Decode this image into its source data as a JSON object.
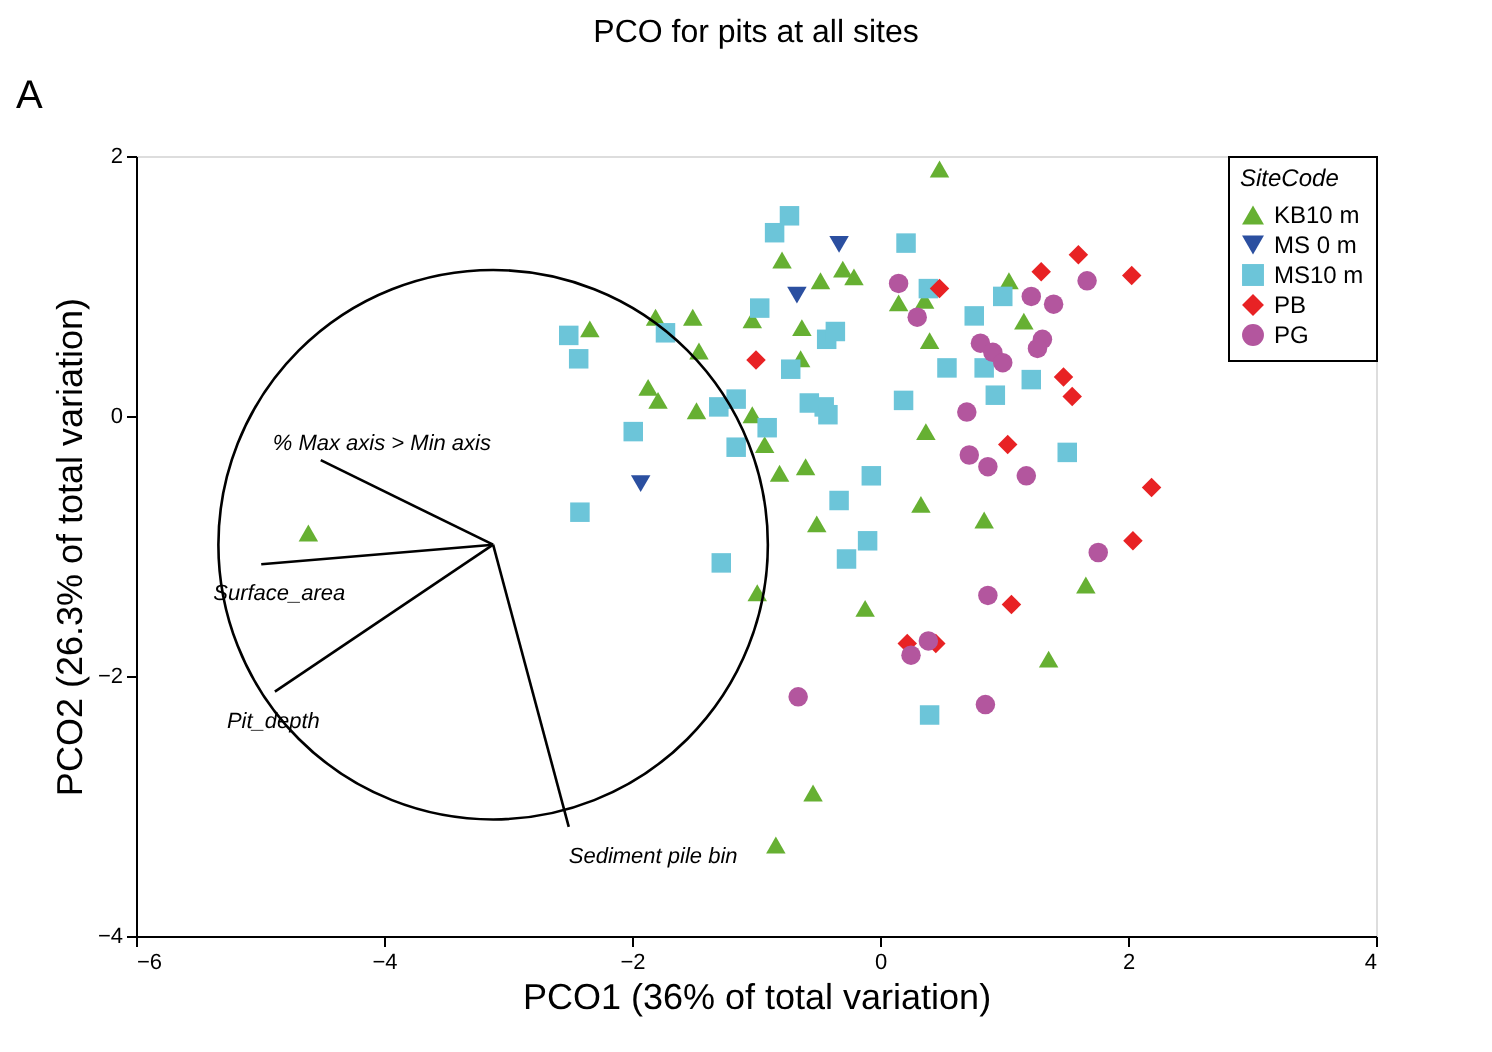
{
  "chart_data": {
    "type": "scatter",
    "title": "PCO for pits at all sites",
    "xlabel": "PCO1 (36% of total variation)",
    "ylabel": "PCO2 (26.3% of total variation)",
    "legend_title": "SiteCode",
    "xlim": [
      -6,
      4
    ],
    "ylim": [
      -4,
      2
    ],
    "xticks": [
      -6,
      -4,
      -2,
      0,
      2,
      4
    ],
    "yticks": [
      -4,
      -2,
      0,
      2
    ],
    "grid": false,
    "legend": "top right",
    "annotations": [
      "A"
    ],
    "series": [
      {
        "name": "KB10 m",
        "color": "#66b032",
        "marker": "triangle",
        "x": [
          0.48,
          -4.61,
          -0.79,
          -2.34,
          -1.81,
          -1.51,
          -1.46,
          -1.87,
          -1.79,
          -1.48,
          -1.03,
          -1.03,
          -0.48,
          -0.3,
          -0.21,
          -0.63,
          -0.64,
          -0.93,
          -0.81,
          -0.6,
          -0.51,
          -0.99,
          -0.12,
          -0.54,
          -0.84,
          0.15,
          0.36,
          0.4,
          1.04,
          1.16,
          0.37,
          0.33,
          0.84,
          1.66,
          1.36
        ],
        "values": [
          1.9,
          -0.9,
          1.2,
          0.67,
          0.76,
          0.76,
          0.5,
          0.22,
          0.12,
          0.04,
          0.01,
          0.74,
          1.04,
          1.13,
          1.07,
          0.68,
          0.44,
          -0.22,
          -0.44,
          -0.39,
          -0.83,
          -1.36,
          -1.48,
          -2.9,
          -3.3,
          0.87,
          0.89,
          0.58,
          1.04,
          0.73,
          -0.12,
          -0.68,
          -0.8,
          -1.3,
          -1.87
        ]
      },
      {
        "name": "MS 0 m",
        "color": "#2b4fa0",
        "marker": "triangle-down",
        "x": [
          -0.33,
          -0.67,
          -1.93
        ],
        "values": [
          1.32,
          0.93,
          -0.52
        ]
      },
      {
        "name": "MS10 m",
        "color": "#6cc5d9",
        "marker": "square",
        "x": [
          -0.73,
          -0.85,
          -2.51,
          -2.43,
          -1.73,
          -0.97,
          -0.43,
          -0.36,
          -0.72,
          -1.3,
          -1.16,
          -0.91,
          -0.57,
          -0.45,
          -0.42,
          -1.99,
          -1.16,
          -0.07,
          -0.33,
          -2.42,
          -0.1,
          -0.27,
          -1.28,
          0.21,
          0.39,
          0.99,
          0.76,
          0.54,
          0.84,
          1.22,
          0.93,
          0.19,
          1.51,
          0.4
        ],
        "values": [
          1.54,
          1.41,
          0.62,
          0.44,
          0.64,
          0.83,
          0.59,
          0.65,
          0.36,
          0.07,
          0.13,
          -0.09,
          0.1,
          0.07,
          0.01,
          -0.12,
          -0.24,
          -0.46,
          -0.65,
          -0.74,
          -0.96,
          -1.1,
          -1.13,
          1.33,
          0.98,
          0.92,
          0.77,
          0.37,
          0.37,
          0.28,
          0.16,
          0.12,
          -0.28,
          -2.3
        ]
      },
      {
        "name": "PB",
        "color": "#e82224",
        "marker": "diamond",
        "x": [
          -1.0,
          0.48,
          1.3,
          1.6,
          2.03,
          1.48,
          1.55,
          1.03,
          2.19,
          2.04,
          1.06,
          0.22,
          0.45
        ],
        "values": [
          0.43,
          0.98,
          1.11,
          1.24,
          1.08,
          0.3,
          0.15,
          -0.22,
          -0.55,
          -0.96,
          -1.45,
          -1.75,
          -1.75
        ]
      },
      {
        "name": "PG",
        "color": "#b3569e",
        "marker": "circle",
        "x": [
          0.15,
          0.3,
          1.22,
          1.4,
          1.67,
          0.81,
          0.91,
          0.99,
          1.31,
          1.27,
          0.7,
          0.72,
          0.87,
          1.18,
          1.76,
          0.87,
          0.25,
          0.39,
          0.85,
          -0.66
        ],
        "values": [
          1.02,
          0.76,
          0.92,
          0.86,
          1.04,
          0.56,
          0.49,
          0.41,
          0.59,
          0.52,
          0.03,
          -0.3,
          -0.39,
          -0.46,
          -1.05,
          -1.38,
          -1.84,
          -1.73,
          -2.22,
          -2.16
        ]
      },
      {
        "name": "% Max axis > Min axis",
        "color": "#000000",
        "type": "line",
        "x": [
          -3.12,
          -4.51
        ],
        "values": [
          -0.99,
          -0.34
        ]
      },
      {
        "name": "Surface_area",
        "color": "#000000",
        "type": "line",
        "x": [
          -3.12,
          -4.99
        ],
        "values": [
          -0.99,
          -1.14
        ]
      },
      {
        "name": "Pit_depth",
        "color": "#000000",
        "type": "line",
        "x": [
          -3.12,
          -4.88
        ],
        "values": [
          -0.99,
          -2.12
        ]
      },
      {
        "name": "Sediment pile bin",
        "color": "#000000",
        "type": "line",
        "x": [
          -3.12,
          -2.51
        ],
        "values": [
          -0.99,
          -3.16
        ]
      }
    ]
  }
}
